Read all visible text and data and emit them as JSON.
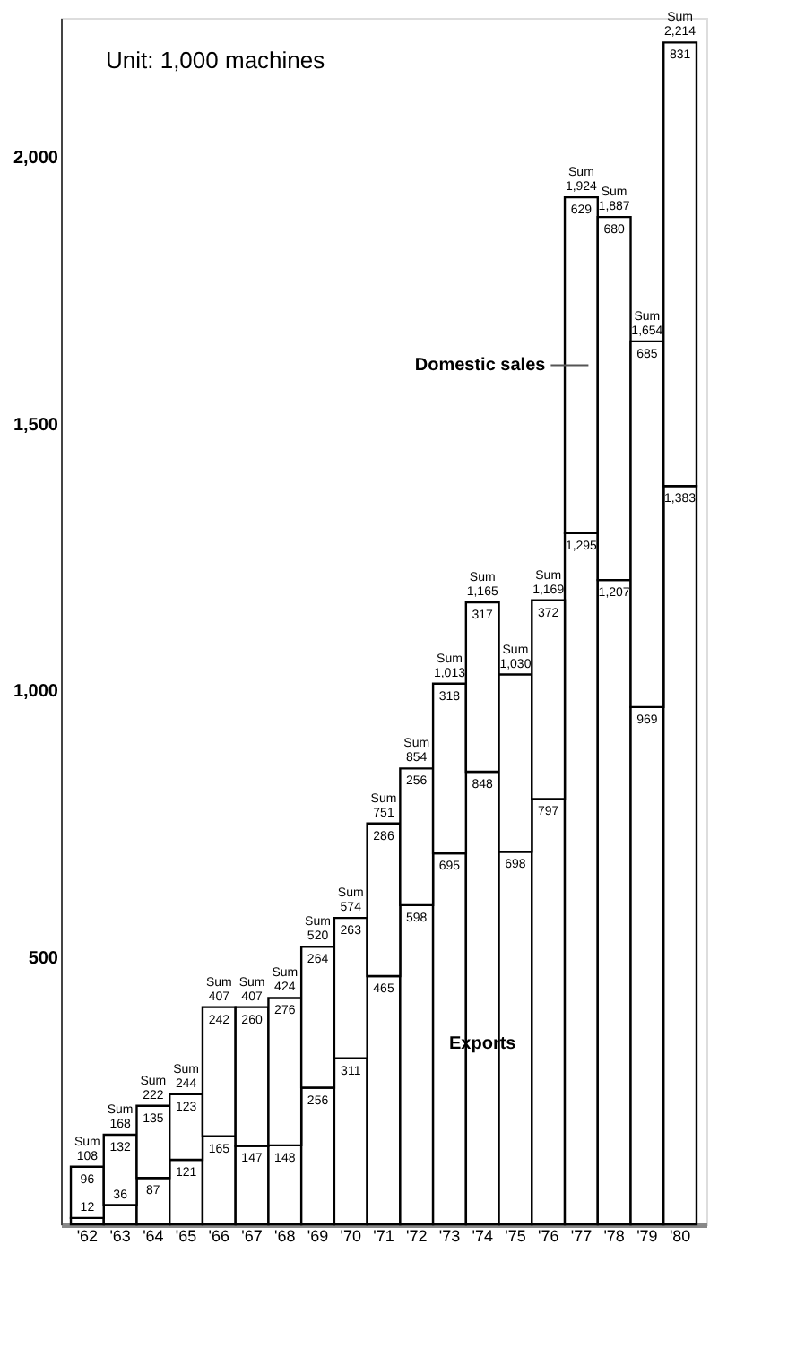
{
  "chart_data": {
    "type": "bar",
    "stacked": true,
    "legend": false,
    "grid": false,
    "categories": [
      "'62",
      "'63",
      "'64",
      "'65",
      "'66",
      "'67",
      "'68",
      "'69",
      "'70",
      "'71",
      "'72",
      "'73",
      "'74",
      "'75",
      "'76",
      "'77",
      "'78",
      "'79",
      "'80"
    ],
    "series": [
      {
        "name": "Exports",
        "color": "#ffffff",
        "values": [
          12,
          36,
          87,
          121,
          165,
          147,
          148,
          256,
          311,
          465,
          598,
          695,
          848,
          698,
          797,
          1295,
          1207,
          969,
          1383
        ],
        "value_labels": [
          "12",
          "36",
          "87",
          "121",
          "165",
          "147",
          "148",
          "256",
          "311",
          "465",
          "598",
          "695",
          "848",
          "698",
          "797",
          "1,295",
          "1,207",
          "969",
          "1,383"
        ]
      },
      {
        "name": "Domestic sales",
        "color": "#ffffff",
        "values": [
          96,
          132,
          135,
          123,
          242,
          260,
          276,
          264,
          263,
          286,
          256,
          318,
          317,
          332,
          372,
          629,
          680,
          685,
          831
        ],
        "value_labels": [
          "96",
          "132",
          "135",
          "123",
          "242",
          "260",
          "276",
          "264",
          "263",
          "286",
          "256",
          "318",
          "317",
          null,
          "372",
          "629",
          "680",
          "685",
          "831"
        ]
      }
    ],
    "totals": [
      "Sum 108",
      "Sum 168",
      "Sum 222",
      "Sum 244",
      "Sum 407",
      "Sum 407",
      "Sum 424",
      "Sum 520",
      "Sum 574",
      "Sum 751",
      "Sum 854",
      "Sum 1,013",
      "Sum 1,165",
      "Sum 1,030",
      "Sum 1,169",
      "Sum 1,924",
      "Sum 1,887",
      "Sum 1,654",
      "Sum 2,214"
    ],
    "ylim": [
      0,
      2260
    ],
    "yticks": [
      {
        "value": 500,
        "label": "500"
      },
      {
        "value": 1000,
        "label": "1,000"
      },
      {
        "value": 1500,
        "label": "1,500"
      },
      {
        "value": 2000,
        "label": "2,000"
      }
    ],
    "annotations": [
      "Unit: 1,000 machines"
    ]
  }
}
